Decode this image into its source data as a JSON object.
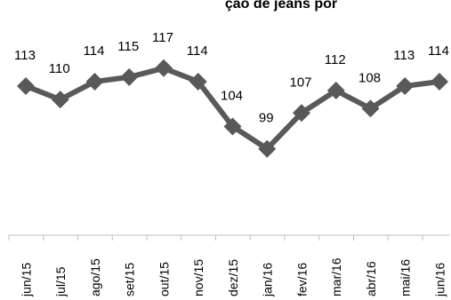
{
  "chart_data": {
    "type": "line",
    "title": "ção de jeans por",
    "categories": [
      "jun/15",
      "jul/15",
      "ago/15",
      "set/15",
      "out/15",
      "nov/15",
      "dez/15",
      "jan/16",
      "fev/16",
      "mar/16",
      "abr/16",
      "mai/16",
      "jun/16"
    ],
    "series": [
      {
        "values": [
          113,
          110,
          114,
          115,
          117,
          114,
          104,
          99,
          107,
          112,
          108,
          113,
          114
        ]
      }
    ],
    "data_labels": [
      "113",
      "110",
      "114",
      "115",
      "117",
      "114",
      "104",
      "99",
      "107",
      "112",
      "108",
      "113",
      "114"
    ],
    "line_color": "#595959",
    "marker": "diamond",
    "grid": false,
    "legend": "none"
  }
}
